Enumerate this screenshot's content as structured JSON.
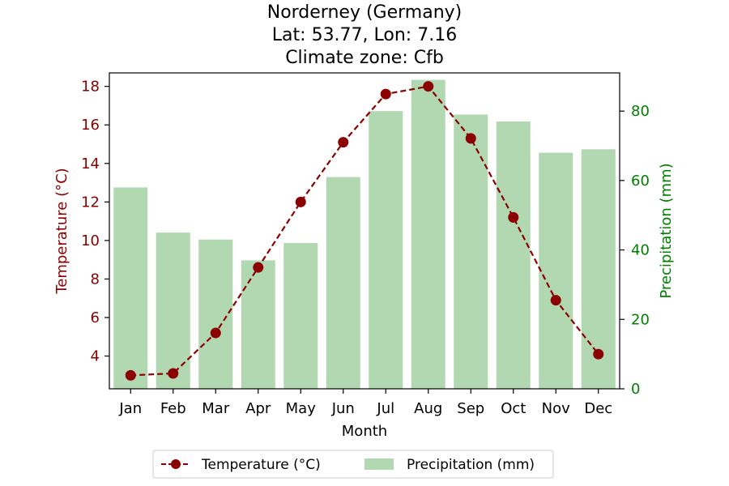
{
  "chart_data": {
    "type": "bar+line",
    "title_lines": [
      "Norderney (Germany)",
      "Lat: 53.77, Lon: 7.16",
      "Climate zone: Cfb"
    ],
    "xlabel": "Month",
    "categories": [
      "Jan",
      "Feb",
      "Mar",
      "Apr",
      "May",
      "Jun",
      "Jul",
      "Aug",
      "Sep",
      "Oct",
      "Nov",
      "Dec"
    ],
    "left_axis": {
      "label": "Temperature (°C)",
      "color": "#8b0000",
      "ylim": [
        2.3,
        18.7
      ],
      "ticks": [
        4,
        6,
        8,
        10,
        12,
        14,
        16,
        18
      ]
    },
    "right_axis": {
      "label": "Precipitation (mm)",
      "color": "#008000",
      "ylim": [
        0,
        91
      ],
      "ticks": [
        0,
        20,
        40,
        60,
        80
      ]
    },
    "series": [
      {
        "name": "Temperature (°C)",
        "kind": "line",
        "axis": "left",
        "color": "#8b0000",
        "linestyle": "dashed",
        "marker": "circle",
        "values": [
          3.0,
          3.1,
          5.2,
          8.6,
          12.0,
          15.1,
          17.6,
          18.0,
          15.3,
          11.2,
          6.9,
          4.1
        ]
      },
      {
        "name": "Precipitation (mm)",
        "kind": "bar",
        "axis": "right",
        "color": "#b2d8b2",
        "values": [
          58,
          45,
          43,
          37,
          42,
          61,
          80,
          89,
          79,
          77,
          68,
          69
        ]
      }
    ],
    "legend_position": "bottom-center",
    "grid": false
  }
}
